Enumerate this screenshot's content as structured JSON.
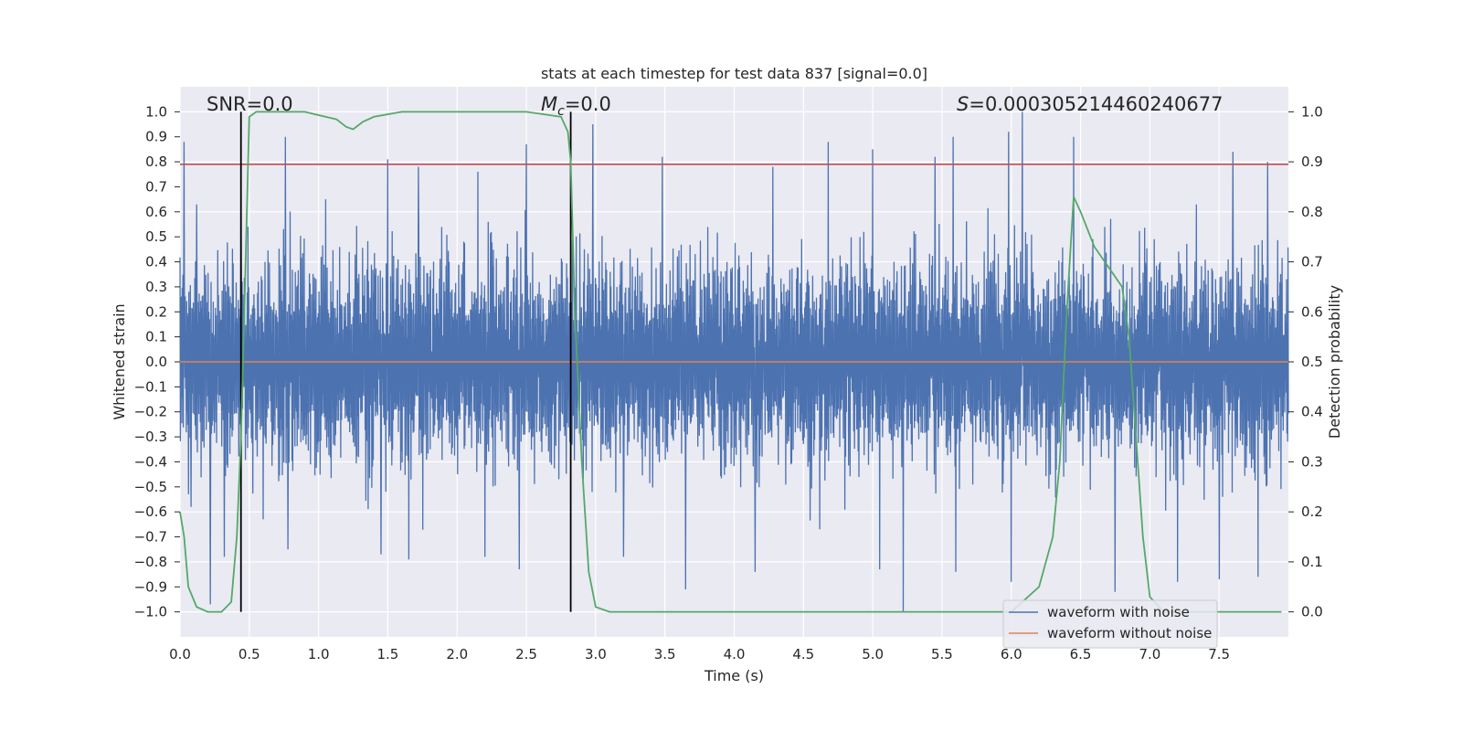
{
  "chart_data": {
    "type": "line",
    "title": "stats at each timestep for test data 837 [signal=0.0]",
    "xlabel": "Time (s)",
    "ylabel": "Whitened strain",
    "ylabel_right": "Detection probability",
    "xlim": [
      0.0,
      8.0
    ],
    "ylim": [
      -1.1,
      1.1
    ],
    "ylim_right": [
      -0.05,
      1.05
    ],
    "x_ticks": [
      "0.0",
      "0.5",
      "1.0",
      "1.5",
      "2.0",
      "2.5",
      "3.0",
      "3.5",
      "4.0",
      "4.5",
      "5.0",
      "5.5",
      "6.0",
      "6.5",
      "7.0",
      "7.5"
    ],
    "y_ticks": [
      "1.0",
      "0.9",
      "0.8",
      "0.7",
      "0.6",
      "0.5",
      "0.4",
      "0.3",
      "0.2",
      "0.1",
      "0.0",
      "−0.1",
      "−0.2",
      "−0.3",
      "−0.4",
      "−0.5",
      "−0.6",
      "−0.7",
      "−0.8",
      "−0.9",
      "−1.0"
    ],
    "y_ticks_right": [
      "1.0",
      "0.9",
      "0.8",
      "0.7",
      "0.6",
      "0.5",
      "0.4",
      "0.3",
      "0.2",
      "0.1",
      "0.0"
    ],
    "grid": true,
    "annotations": {
      "snr": "SNR=0.0",
      "mc_symbol": "M",
      "mc_sub": "c",
      "mc_value": "=0.0",
      "s_symbol": "S",
      "s_value": "=0.000305214460240677"
    },
    "series": [
      {
        "name": "waveform with noise",
        "color": "#4c72b0",
        "axis": "left",
        "description": "dense noise strain, 8 s",
        "envelope_typical": [
          -0.45,
          0.45
        ],
        "peaks": [
          {
            "x": 0.03,
            "y": 0.88
          },
          {
            "x": 0.12,
            "y": 0.63
          },
          {
            "x": 0.22,
            "y": 0.58
          },
          {
            "x": 0.44,
            "y": 0.72
          },
          {
            "x": 0.76,
            "y": 0.9
          },
          {
            "x": 1.05,
            "y": 0.65
          },
          {
            "x": 1.5,
            "y": 0.81
          },
          {
            "x": 1.65,
            "y": 0.95
          },
          {
            "x": 1.72,
            "y": 0.78
          },
          {
            "x": 2.15,
            "y": 0.76
          },
          {
            "x": 2.5,
            "y": 0.87
          },
          {
            "x": 2.98,
            "y": 0.95
          },
          {
            "x": 3.48,
            "y": 0.82
          },
          {
            "x": 4.28,
            "y": 0.78
          },
          {
            "x": 4.68,
            "y": 0.88
          },
          {
            "x": 5.0,
            "y": 0.85
          },
          {
            "x": 5.45,
            "y": 0.82
          },
          {
            "x": 5.58,
            "y": 0.9
          },
          {
            "x": 5.98,
            "y": 0.92
          },
          {
            "x": 6.08,
            "y": 1.0
          },
          {
            "x": 6.45,
            "y": 0.9
          },
          {
            "x": 7.2,
            "y": 0.8
          },
          {
            "x": 7.6,
            "y": 0.84
          },
          {
            "x": 7.85,
            "y": 0.8
          }
        ],
        "troughs": [
          {
            "x": 0.08,
            "y": -0.58
          },
          {
            "x": 0.22,
            "y": -0.97
          },
          {
            "x": 0.32,
            "y": -0.78
          },
          {
            "x": 0.6,
            "y": -0.63
          },
          {
            "x": 0.78,
            "y": -0.75
          },
          {
            "x": 1.45,
            "y": -0.77
          },
          {
            "x": 1.65,
            "y": -0.79
          },
          {
            "x": 2.2,
            "y": -0.78
          },
          {
            "x": 2.45,
            "y": -0.83
          },
          {
            "x": 3.2,
            "y": -0.78
          },
          {
            "x": 3.65,
            "y": -0.91
          },
          {
            "x": 4.15,
            "y": -0.84
          },
          {
            "x": 5.05,
            "y": -0.83
          },
          {
            "x": 5.22,
            "y": -1.0
          },
          {
            "x": 5.6,
            "y": -0.84
          },
          {
            "x": 6.0,
            "y": -0.88
          },
          {
            "x": 6.75,
            "y": -0.92
          },
          {
            "x": 7.2,
            "y": -0.88
          },
          {
            "x": 7.5,
            "y": -0.87
          },
          {
            "x": 7.78,
            "y": -0.86
          }
        ]
      },
      {
        "name": "waveform without noise",
        "color": "#dd8452",
        "axis": "left",
        "x": [
          0,
          8
        ],
        "y": [
          0,
          0
        ]
      },
      {
        "name": "Detection probability",
        "color": "#55a868",
        "axis": "right",
        "x": [
          0.0,
          0.03,
          0.06,
          0.12,
          0.2,
          0.3,
          0.37,
          0.41,
          0.44,
          0.46,
          0.5,
          0.55,
          0.7,
          0.9,
          1.05,
          1.13,
          1.2,
          1.25,
          1.32,
          1.4,
          1.6,
          2.0,
          2.5,
          2.75,
          2.8,
          2.82,
          2.85,
          2.9,
          2.95,
          3.0,
          3.1,
          3.5,
          6.0,
          6.2,
          6.3,
          6.35,
          6.4,
          6.45,
          6.5,
          6.6,
          6.7,
          6.8,
          6.85,
          6.9,
          6.95,
          7.0,
          7.1,
          7.95
        ],
        "y": [
          0.2,
          0.15,
          0.05,
          0.01,
          0.0,
          0.0,
          0.02,
          0.15,
          0.35,
          0.55,
          0.99,
          1.0,
          1.0,
          1.0,
          0.99,
          0.985,
          0.97,
          0.965,
          0.98,
          0.99,
          1.0,
          1.0,
          1.0,
          0.99,
          0.96,
          0.9,
          0.6,
          0.3,
          0.08,
          0.01,
          0.0,
          0.0,
          0.0,
          0.05,
          0.15,
          0.3,
          0.6,
          0.83,
          0.8,
          0.73,
          0.69,
          0.65,
          0.55,
          0.35,
          0.15,
          0.03,
          0.0,
          0.0
        ]
      }
    ],
    "reference_lines": [
      {
        "type": "horizontal",
        "axis": "left",
        "y": 0.79,
        "color": "#c44e52"
      },
      {
        "type": "vertical",
        "x": 0.44,
        "y_range": [
          -1.0,
          1.0
        ],
        "color": "#000000"
      },
      {
        "type": "vertical",
        "x": 2.82,
        "y_range": [
          -1.0,
          1.0
        ],
        "color": "#000000"
      }
    ],
    "legend": {
      "placement": "lower-right",
      "entries": [
        {
          "label": "waveform with noise",
          "color": "#4c72b0"
        },
        {
          "label": "waveform without noise",
          "color": "#dd8452"
        }
      ]
    },
    "colors": {
      "axes_background": "#eaeaf2",
      "grid": "#ffffff",
      "text": "#262626"
    }
  }
}
